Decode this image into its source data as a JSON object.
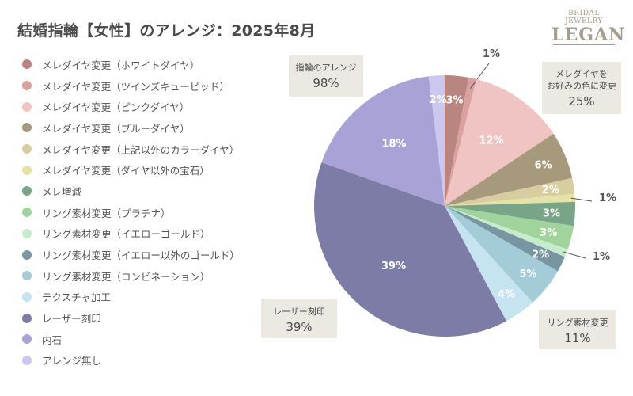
{
  "header": {
    "title": "結婚指輪【女性】のアレンジ：2025年8月"
  },
  "logo": {
    "line1": "BRIDAL JEWELRY",
    "line2": "LEGAN"
  },
  "chart_data": {
    "type": "pie",
    "title": "結婚指輪【女性】のアレンジ：2025年8月",
    "legend_position": "left",
    "start_angle": "top, clockwise",
    "slices": [
      {
        "label": "メレダイヤ変更（ホワイトダイヤ）",
        "value": 3,
        "display": "3%",
        "color": "#b98580",
        "label_text_color": "#ffffff",
        "external": false
      },
      {
        "label": "メレダイヤ変更（ツインズキューピッド）",
        "value": 1,
        "display": "1%",
        "color": "#d9a1a0",
        "label_text_color": "#555555",
        "external": true
      },
      {
        "label": "メレダイヤ変更（ピンクダイヤ）",
        "value": 12,
        "display": "12%",
        "color": "#efc4c3",
        "label_text_color": "#ffffff",
        "external": false
      },
      {
        "label": "メレダイヤ変更（ブルーダイヤ）",
        "value": 6,
        "display": "6%",
        "color": "#a79a7c",
        "label_text_color": "#ffffff",
        "external": false
      },
      {
        "label": "メレダイヤ変更（上記以外のカラーダイヤ）",
        "value": 2,
        "display": "2%",
        "color": "#d8cd9f",
        "label_text_color": "#ffffff",
        "external": false
      },
      {
        "label": "メレダイヤ変更（ダイヤ以外の宝石）",
        "value": 1,
        "display": "1%",
        "color": "#e5e2a6",
        "label_text_color": "#555555",
        "external": true
      },
      {
        "label": "メレ増減",
        "value": 3,
        "display": "3%",
        "color": "#78a487",
        "label_text_color": "#ffffff",
        "external": false
      },
      {
        "label": "リング素材変更（プラチナ）",
        "value": 3,
        "display": "3%",
        "color": "#a1d39d",
        "label_text_color": "#ffffff",
        "external": false
      },
      {
        "label": "リング素材変更（イエローゴールド）",
        "value": 1,
        "display": "1%",
        "color": "#c7eccc",
        "label_text_color": "#555555",
        "external": true
      },
      {
        "label": "リング素材変更（イエロー以外のゴールド）",
        "value": 2,
        "display": "2%",
        "color": "#7896a2",
        "label_text_color": "#ffffff",
        "external": false
      },
      {
        "label": "リング素材変更（コンビネーション）",
        "value": 5,
        "display": "5%",
        "color": "#a3cbd8",
        "label_text_color": "#ffffff",
        "external": false
      },
      {
        "label": "テクスチャ加工",
        "value": 4,
        "display": "4%",
        "color": "#c6e3f0",
        "label_text_color": "#ffffff",
        "external": false
      },
      {
        "label": "レーザー刻印",
        "value": 39,
        "display": "39%",
        "color": "#7c7ca6",
        "label_text_color": "#ffffff",
        "external": false
      },
      {
        "label": "内石",
        "value": 18,
        "display": "18%",
        "color": "#a8a2d6",
        "label_text_color": "#ffffff",
        "external": false
      },
      {
        "label": "アレンジ無し",
        "value": 2,
        "display": "2%",
        "color": "#cbc7ef",
        "label_text_color": "#ffffff",
        "external": false
      }
    ],
    "annotations": [
      {
        "label": "指輪のアレンジ",
        "value": "98%"
      },
      {
        "label": "メレダイヤを\nお好みの色に変更",
        "value": "25%"
      },
      {
        "label": "リング素材変更",
        "value": "11%"
      },
      {
        "label": "レーザー刻印",
        "value": "39%"
      }
    ]
  }
}
